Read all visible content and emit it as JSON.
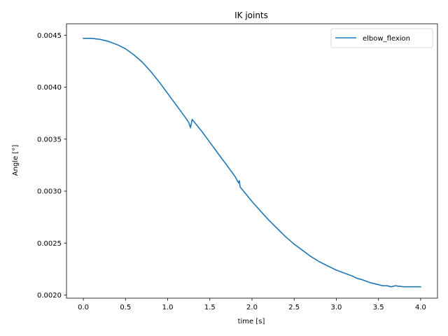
{
  "chart_data": {
    "type": "line",
    "title": "IK joints",
    "xlabel": "time [s]",
    "ylabel": "Angle [°]",
    "xlim": [
      -0.2,
      4.2
    ],
    "ylim": [
      0.00197,
      0.00461
    ],
    "xticks": [
      0.0,
      0.5,
      1.0,
      1.5,
      2.0,
      2.5,
      3.0,
      3.5,
      4.0
    ],
    "xtick_labels": [
      "0.0",
      "0.5",
      "1.0",
      "1.5",
      "2.0",
      "2.5",
      "3.0",
      "3.5",
      "4.0"
    ],
    "yticks": [
      0.002,
      0.0025,
      0.003,
      0.0035,
      0.004,
      0.0045
    ],
    "ytick_labels": [
      "0.0020",
      "0.0025",
      "0.0030",
      "0.0035",
      "0.0040",
      "0.0045"
    ],
    "grid": false,
    "legend_position": "top-right",
    "series": [
      {
        "name": "elbow_flexion",
        "color": "#1f77b4",
        "x": [
          0.0,
          0.1,
          0.2,
          0.3,
          0.4,
          0.5,
          0.6,
          0.7,
          0.8,
          0.9,
          1.0,
          1.1,
          1.2,
          1.25,
          1.27,
          1.29,
          1.35,
          1.4,
          1.5,
          1.6,
          1.7,
          1.8,
          1.84,
          1.85,
          1.86,
          1.9,
          2.0,
          2.1,
          2.2,
          2.3,
          2.4,
          2.5,
          2.6,
          2.7,
          2.8,
          2.9,
          3.0,
          3.1,
          3.2,
          3.22,
          3.25,
          3.3,
          3.4,
          3.5,
          3.55,
          3.6,
          3.65,
          3.7,
          3.8,
          3.9,
          4.0
        ],
        "y": [
          0.00447,
          0.00447,
          0.00446,
          0.00444,
          0.00441,
          0.00437,
          0.00431,
          0.00424,
          0.00415,
          0.00405,
          0.00394,
          0.00383,
          0.00372,
          0.00366,
          0.00361,
          0.00369,
          0.00363,
          0.00358,
          0.00347,
          0.00336,
          0.00325,
          0.00314,
          0.00308,
          0.0031,
          0.00304,
          0.003,
          0.0029,
          0.00281,
          0.00272,
          0.00264,
          0.00256,
          0.00249,
          0.00243,
          0.00237,
          0.00232,
          0.00228,
          0.00224,
          0.00221,
          0.00218,
          0.00217,
          0.00216,
          0.00215,
          0.00212,
          0.0021,
          0.00209,
          0.00209,
          0.00208,
          0.00209,
          0.00208,
          0.00208,
          0.00208
        ]
      }
    ]
  }
}
